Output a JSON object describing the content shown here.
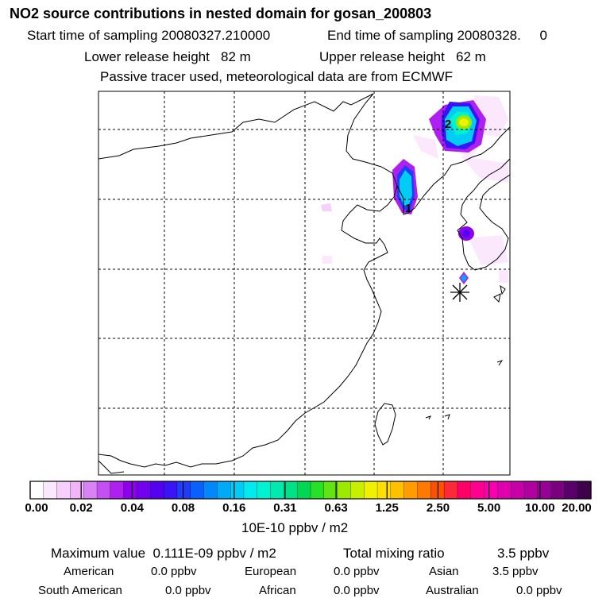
{
  "header": {
    "title": "NO2 source contributions in nested domain for gosan_200803",
    "start": "Start time of sampling 20080327.210000",
    "end": "End time of sampling 20080328.     0",
    "lower": "Lower release height   82 m",
    "upper": "Upper release height   62 m",
    "note": "Passive tracer used, meteorological data are from ECMWF"
  },
  "map": {
    "labels": {
      "source1": "1",
      "source2": "2"
    },
    "receptor_symbol": "*"
  },
  "colorbar": {
    "tick_labels": [
      "0.00",
      "0.02",
      "0.04",
      "0.08",
      "0.16",
      "0.31",
      "0.63",
      "1.25",
      "2.50",
      "5.00",
      "10.00",
      "20.00"
    ],
    "colors": [
      "#ffffff",
      "#fbe8fd",
      "#f6cffb",
      "#f0b4f8",
      "#d982f5",
      "#c44ff2",
      "#af1fef",
      "#8f00ee",
      "#7300ee",
      "#5500f0",
      "#3a14f5",
      "#1f3cfa",
      "#0a60fc",
      "#0288fa",
      "#00aaf8",
      "#00ccf5",
      "#00eaf0",
      "#00f2d0",
      "#00eab0",
      "#00e088",
      "#00d855",
      "#28e025",
      "#62e410",
      "#9cea00",
      "#c8ee00",
      "#eef200",
      "#ffdf00",
      "#ffc000",
      "#ff9c00",
      "#ff7800",
      "#ff5000",
      "#ff2838",
      "#ff0068",
      "#ff0090",
      "#f800b0",
      "#e000b0",
      "#c800a8",
      "#b000a0",
      "#980098",
      "#7a0080",
      "#5a006a",
      "#40004c"
    ],
    "unit": "10E-10 ppbv / m2"
  },
  "summary": {
    "max_value": "Maximum value  0.111E-09 ppbv / m2",
    "total_label": "Total mixing ratio",
    "total_value": "3.5 ppbv",
    "regions": [
      {
        "name": "American",
        "value": "0.0 ppbv"
      },
      {
        "name": "European",
        "value": "0.0 ppbv"
      },
      {
        "name": "Asian",
        "value": "3.5 ppbv"
      },
      {
        "name": "South American",
        "value": "0.0 ppbv"
      },
      {
        "name": "African",
        "value": "0.0 ppbv"
      },
      {
        "name": "Australian",
        "value": "0.0 ppbv"
      }
    ]
  }
}
